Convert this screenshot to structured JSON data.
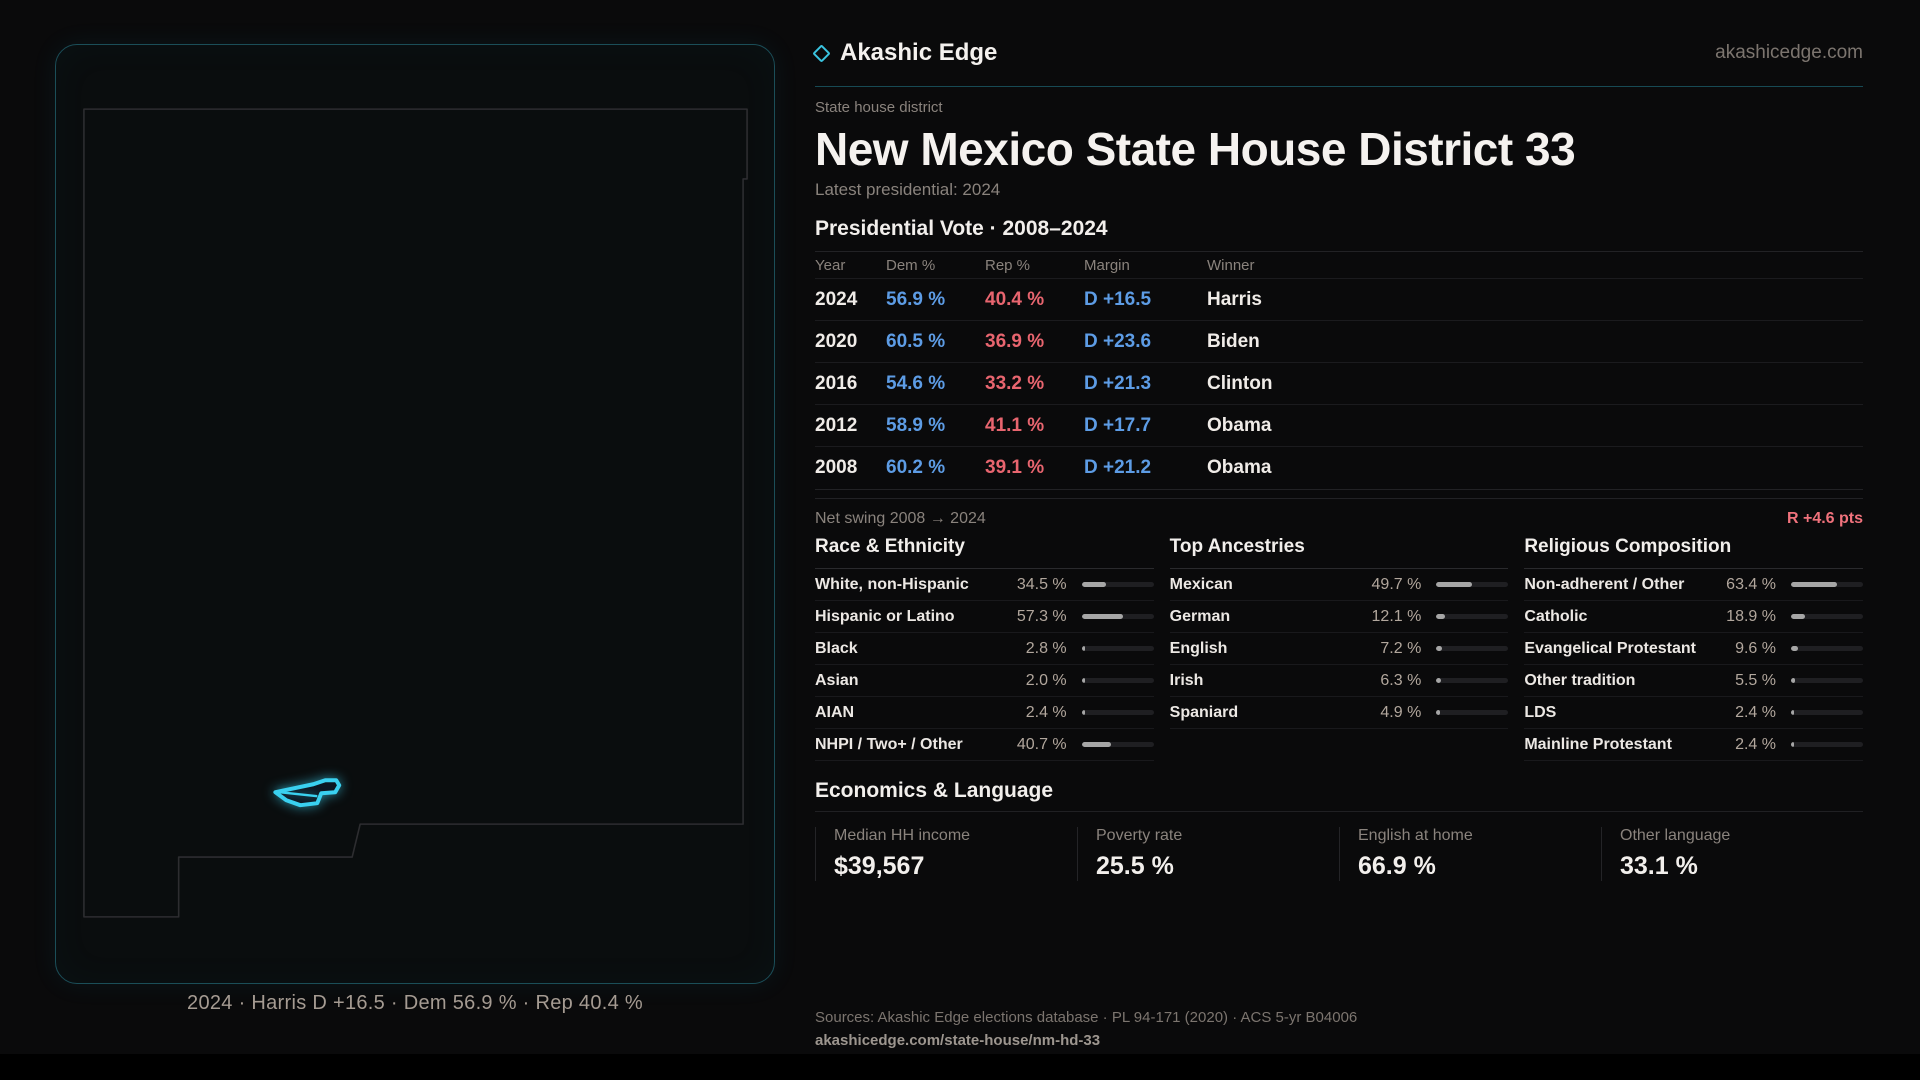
{
  "brand": {
    "name": "Akashic Edge",
    "site": "akashicedge.com"
  },
  "header": {
    "kicker": "State house district",
    "title": "New Mexico State House District 33",
    "subtitle": "Latest presidential: 2024"
  },
  "vote_table": {
    "title": "Presidential Vote · 2008–2024",
    "columns": [
      "Year",
      "Dem %",
      "Rep %",
      "Margin",
      "Winner"
    ],
    "rows": [
      {
        "year": "2024",
        "dem": "56.9 %",
        "rep": "40.4 %",
        "margin": "D +16.5",
        "winner": "Harris"
      },
      {
        "year": "2020",
        "dem": "60.5 %",
        "rep": "36.9 %",
        "margin": "D +23.6",
        "winner": "Biden"
      },
      {
        "year": "2016",
        "dem": "54.6 %",
        "rep": "33.2 %",
        "margin": "D +21.3",
        "winner": "Clinton"
      },
      {
        "year": "2012",
        "dem": "58.9 %",
        "rep": "41.1 %",
        "margin": "D +17.7",
        "winner": "Obama"
      },
      {
        "year": "2008",
        "dem": "60.2 %",
        "rep": "39.1 %",
        "margin": "D +21.2",
        "winner": "Obama"
      }
    ]
  },
  "net_swing": {
    "label": "Net swing 2008 → 2024",
    "value": "R +4.6 pts"
  },
  "panels": [
    {
      "title": "Race & Ethnicity",
      "rows": [
        {
          "label": "White, non-Hispanic",
          "value": "34.5 %",
          "pct": 34.5
        },
        {
          "label": "Hispanic or Latino",
          "value": "57.3 %",
          "pct": 57.3
        },
        {
          "label": "Black",
          "value": "2.8 %",
          "pct": 2.8
        },
        {
          "label": "Asian",
          "value": "2.0 %",
          "pct": 2.0
        },
        {
          "label": "AIAN",
          "value": "2.4 %",
          "pct": 2.4
        },
        {
          "label": "NHPI / Two+ / Other",
          "value": "40.7 %",
          "pct": 40.7
        }
      ]
    },
    {
      "title": "Top Ancestries",
      "rows": [
        {
          "label": "Mexican",
          "value": "49.7 %",
          "pct": 49.7
        },
        {
          "label": "German",
          "value": "12.1 %",
          "pct": 12.1
        },
        {
          "label": "English",
          "value": "7.2 %",
          "pct": 7.2
        },
        {
          "label": "Irish",
          "value": "6.3 %",
          "pct": 6.3
        },
        {
          "label": "Spaniard",
          "value": "4.9 %",
          "pct": 4.9
        }
      ]
    },
    {
      "title": "Religious Composition",
      "rows": [
        {
          "label": "Non-adherent / Other",
          "value": "63.4 %",
          "pct": 63.4
        },
        {
          "label": "Catholic",
          "value": "18.9 %",
          "pct": 18.9
        },
        {
          "label": "Evangelical Protestant",
          "value": "9.6 %",
          "pct": 9.6
        },
        {
          "label": "Other tradition",
          "value": "5.5 %",
          "pct": 5.5
        },
        {
          "label": "LDS",
          "value": "2.4 %",
          "pct": 2.4
        },
        {
          "label": "Mainline Protestant",
          "value": "2.4 %",
          "pct": 2.4
        }
      ]
    }
  ],
  "economics": {
    "title": "Economics & Language",
    "stats": [
      {
        "label": "Median HH income",
        "value": "$39,567"
      },
      {
        "label": "Poverty rate",
        "value": "25.5 %"
      },
      {
        "label": "English at home",
        "value": "66.9 %"
      },
      {
        "label": "Other language",
        "value": "33.1 %"
      }
    ]
  },
  "map": {
    "caption": "2024 · Harris D +16.5 · Dem 56.9 % · Rep 40.4 %"
  },
  "footer": {
    "sources": "Sources: Akashic Edge elections database · PL 94-171 (2020) · ACS 5-yr B04006",
    "permalink": "akashicedge.com/state-house/nm-hd-33"
  },
  "colors": {
    "dem_blue": "#5d9ce5",
    "rep_red": "#e8656f",
    "swing_red": "#f0727c",
    "district_cyan": "#3ad1f0",
    "panel_border_teal": "#1b4e58"
  }
}
